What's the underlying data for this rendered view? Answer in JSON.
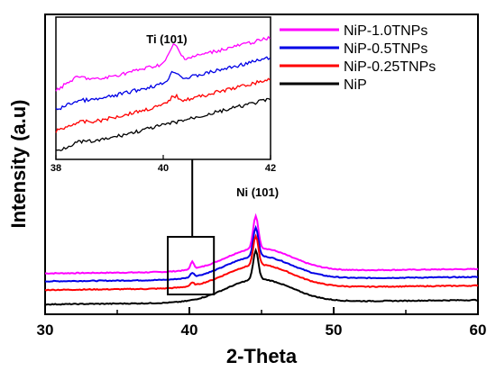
{
  "chart_data": {
    "type": "line",
    "xlabel": "2-Theta",
    "ylabel": "Intensity (a.u)",
    "xlim": [
      30,
      60
    ],
    "x_ticks": [
      "30",
      "40",
      "50",
      "60"
    ],
    "y_ticks": false,
    "grid": false,
    "legend_position": "top-right",
    "series": [
      {
        "name": "NiP-1.0TNPs",
        "color": "#ff00ff",
        "offset": 0.43,
        "peak_height": 0.45,
        "ti_peak": 0.1
      },
      {
        "name": "NiP-0.5TNPs",
        "color": "#0000e6",
        "offset": 0.32,
        "peak_height": 0.4,
        "ti_peak": 0.06
      },
      {
        "name": "NiP-0.25TNPs",
        "color": "#ff0000",
        "offset": 0.2,
        "peak_height": 0.4,
        "ti_peak": 0.04
      },
      {
        "name": "NiP",
        "color": "#000000",
        "offset": 0.0,
        "peak_height": 0.4,
        "ti_peak": 0.0
      }
    ],
    "annotations": {
      "main_peak": {
        "label": "Ni (101)",
        "x": 44.6
      },
      "inset_peak": {
        "label": "Ti (101)",
        "x": 40.2
      }
    },
    "inset": {
      "xlim": [
        38,
        42
      ],
      "x_ticks": [
        "38",
        "40",
        "42"
      ],
      "zoom_box_xlim": [
        38.5,
        41.7
      ]
    }
  }
}
